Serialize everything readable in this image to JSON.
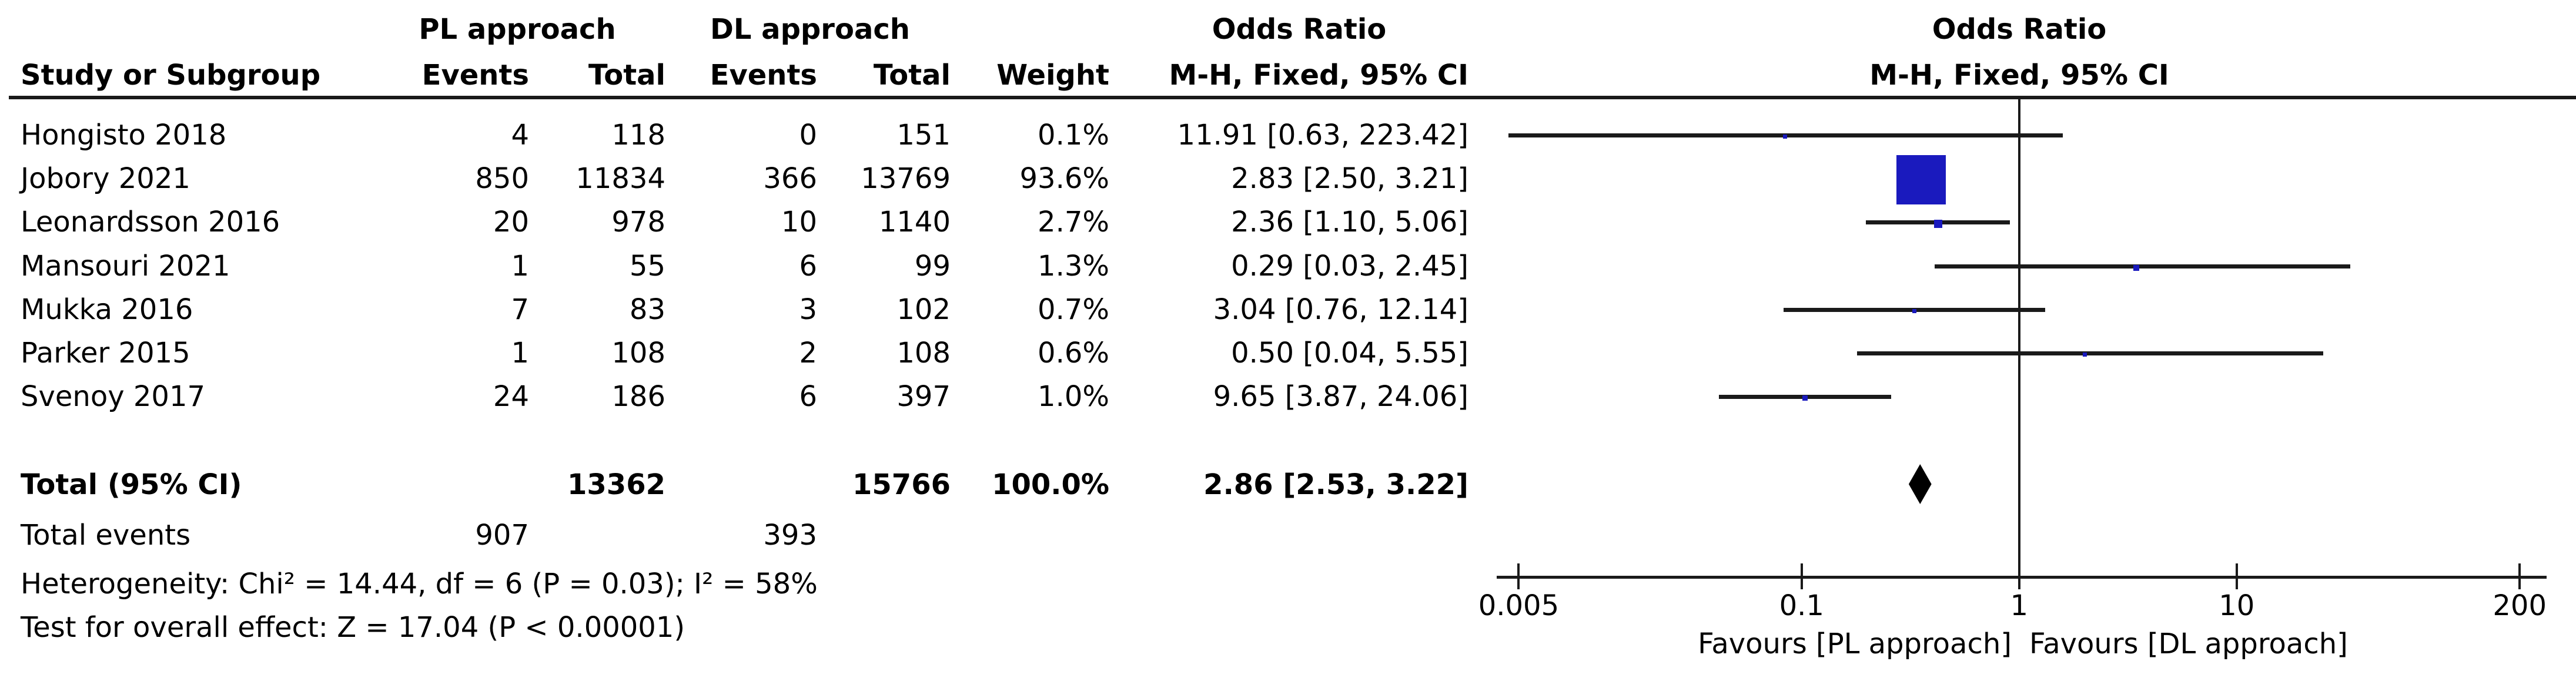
{
  "table_headers": {
    "study": "Study or Subgroup",
    "group1": "PL approach",
    "group2": "DL approach",
    "events": "Events",
    "total": "Total",
    "weight": "Weight",
    "or_line1": "Odds Ratio",
    "or_line2": "M-H, Fixed, 95% CI"
  },
  "chart_data": {
    "type": "forest",
    "title": "Odds Ratio",
    "subtitle": "M-H, Fixed, 95% CI",
    "studies": [
      {
        "name": "Hongisto 2018",
        "events_pl": "4",
        "total_pl": "118",
        "events_dl": "0",
        "total_dl": "151",
        "weight": "0.1%",
        "weight_pct": 0.1,
        "or": 11.91,
        "ci_low": 0.63,
        "ci_high": 223.42,
        "or_ci_text": "11.91 [0.63, 223.42]"
      },
      {
        "name": "Jobory 2021",
        "events_pl": "850",
        "total_pl": "11834",
        "events_dl": "366",
        "total_dl": "13769",
        "weight": "93.6%",
        "weight_pct": 93.6,
        "or": 2.83,
        "ci_low": 2.5,
        "ci_high": 3.21,
        "or_ci_text": "2.83 [2.50, 3.21]"
      },
      {
        "name": "Leonardsson 2016",
        "events_pl": "20",
        "total_pl": "978",
        "events_dl": "10",
        "total_dl": "1140",
        "weight": "2.7%",
        "weight_pct": 2.7,
        "or": 2.36,
        "ci_low": 1.1,
        "ci_high": 5.06,
        "or_ci_text": "2.36 [1.10, 5.06]"
      },
      {
        "name": "Mansouri 2021",
        "events_pl": "1",
        "total_pl": "55",
        "events_dl": "6",
        "total_dl": "99",
        "weight": "1.3%",
        "weight_pct": 1.3,
        "or": 0.29,
        "ci_low": 0.03,
        "ci_high": 2.45,
        "or_ci_text": "0.29 [0.03, 2.45]"
      },
      {
        "name": "Mukka 2016",
        "events_pl": "7",
        "total_pl": "83",
        "events_dl": "3",
        "total_dl": "102",
        "weight": "0.7%",
        "weight_pct": 0.7,
        "or": 3.04,
        "ci_low": 0.76,
        "ci_high": 12.14,
        "or_ci_text": "3.04 [0.76, 12.14]"
      },
      {
        "name": "Parker 2015",
        "events_pl": "1",
        "total_pl": "108",
        "events_dl": "2",
        "total_dl": "108",
        "weight": "0.6%",
        "weight_pct": 0.6,
        "or": 0.5,
        "ci_low": 0.04,
        "ci_high": 5.55,
        "or_ci_text": "0.50 [0.04, 5.55]"
      },
      {
        "name": "Svenoy 2017",
        "events_pl": "24",
        "total_pl": "186",
        "events_dl": "6",
        "total_dl": "397",
        "weight": "1.0%",
        "weight_pct": 1.0,
        "or": 9.65,
        "ci_low": 3.87,
        "ci_high": 24.06,
        "or_ci_text": "9.65 [3.87, 24.06]"
      }
    ],
    "total": {
      "label": "Total (95% CI)",
      "total_pl": "13362",
      "total_dl": "15766",
      "weight": "100.0%",
      "or": 2.86,
      "ci_low": 2.53,
      "ci_high": 3.22,
      "or_ci_text": "2.86 [2.53, 3.22]"
    },
    "total_events": {
      "label": "Total events",
      "events_pl": "907",
      "events_dl": "393"
    },
    "heterogeneity": "Heterogeneity: Chi² = 14.44, df = 6 (P = 0.03); I² = 58%",
    "overall_effect": "Test for overall effect: Z = 17.04 (P < 0.00001)",
    "axis": {
      "scale": "log",
      "ticks": [
        0.005,
        0.1,
        1,
        10,
        200
      ],
      "tick_labels": [
        "0.005",
        "0.1",
        "1",
        "10",
        "200"
      ]
    },
    "favours_left": "Favours [PL approach]",
    "favours_right": "Favours [DL approach]",
    "marker_color": "#1a1abe",
    "diamond_color": "#000000",
    "line_color": "#1a1a1a",
    "plot_positions_mirrored": true
  }
}
